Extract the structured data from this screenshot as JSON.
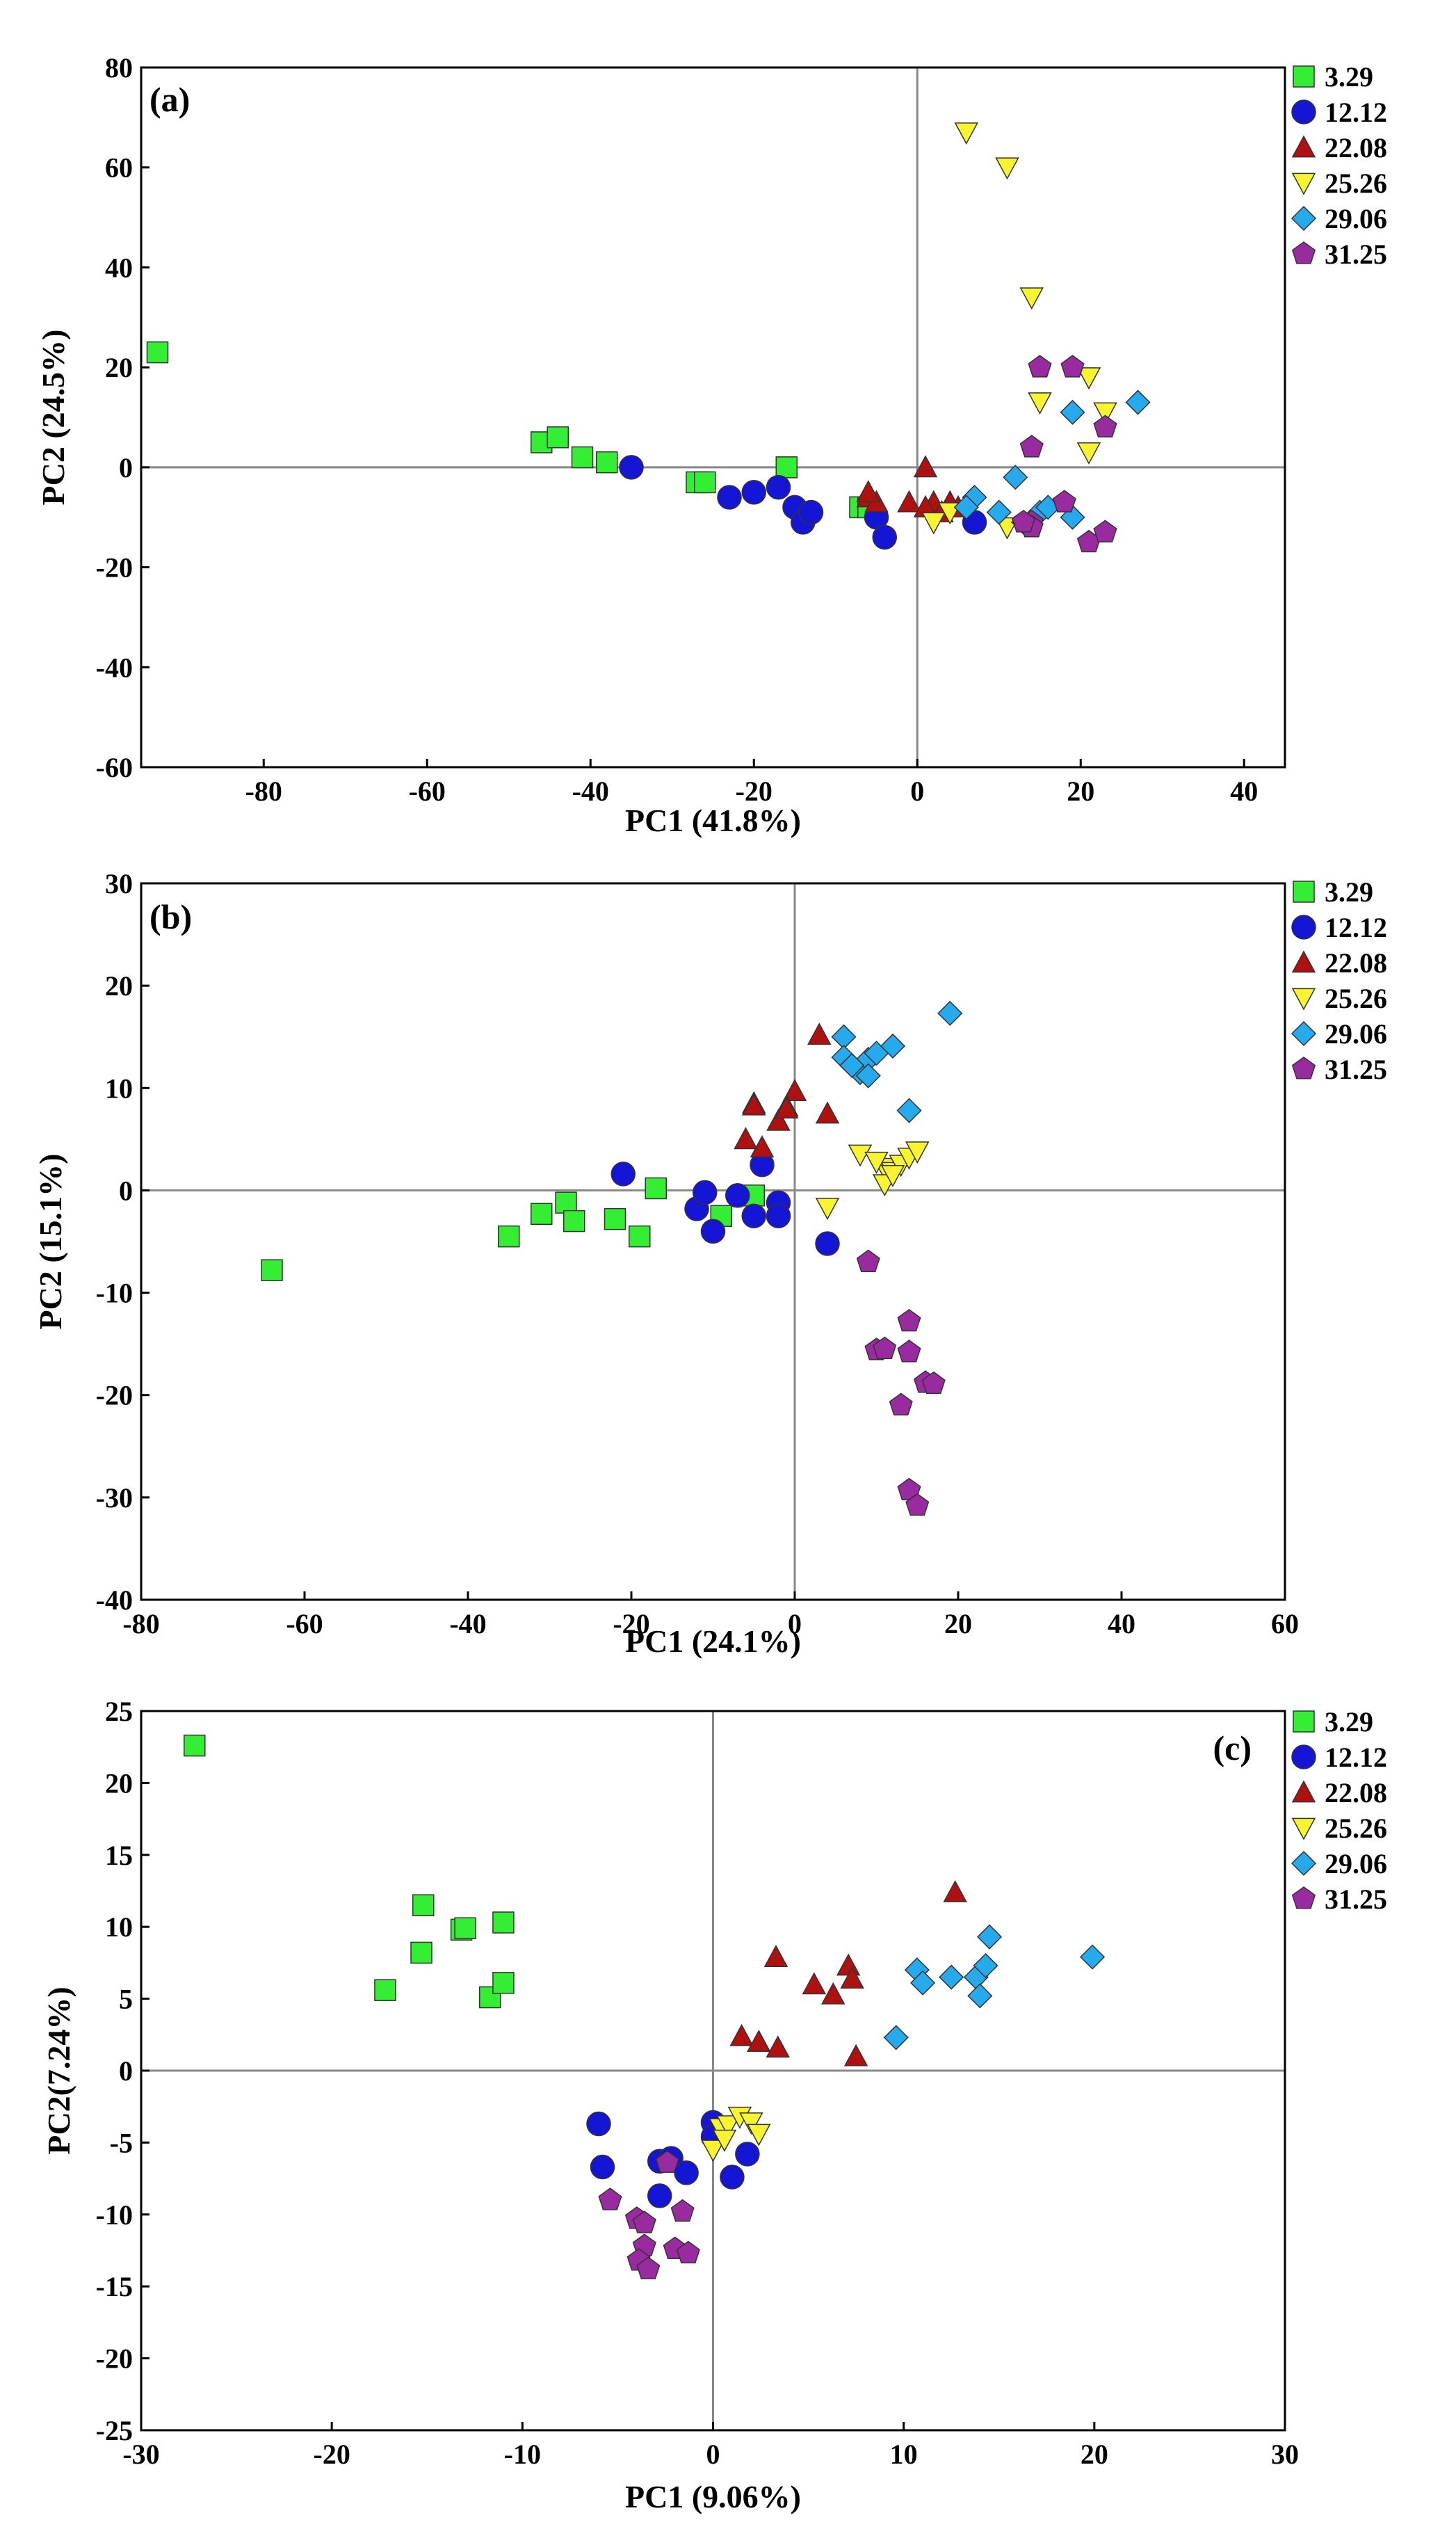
{
  "colors": {
    "s329": "#33ee33",
    "s1212": "#1515d5",
    "s2208": "#b01010",
    "s2526": "#f8f530",
    "s2906": "#25aaee",
    "s3125": "#9a2aa0"
  },
  "chart_data": [
    {
      "type": "scatter",
      "panel": "(a)",
      "xlabel": "PC1 (41.8%)",
      "ylabel": "PC2 (24.5%)",
      "xlim": [
        -95,
        45
      ],
      "ylim": [
        -60,
        80
      ],
      "xticks": [
        -80,
        -60,
        -40,
        -20,
        0,
        20,
        40
      ],
      "yticks": [
        -60,
        -40,
        -20,
        0,
        20,
        40,
        60,
        80
      ],
      "legend_position": "outside-top-right",
      "series": [
        {
          "name": "3.29",
          "marker": "square",
          "color": "#33ee33",
          "points": [
            [
              -93,
              23
            ],
            [
              -46,
              5
            ],
            [
              -44,
              6
            ],
            [
              -41,
              2
            ],
            [
              -38,
              1
            ],
            [
              -27,
              -3
            ],
            [
              -26,
              -3
            ],
            [
              -16,
              0
            ],
            [
              -7,
              -8
            ],
            [
              -6,
              -8
            ]
          ]
        },
        {
          "name": "12.12",
          "marker": "circle",
          "color": "#1515d5",
          "points": [
            [
              -35,
              0
            ],
            [
              -23,
              -6
            ],
            [
              -20,
              -5
            ],
            [
              -17,
              -4
            ],
            [
              -15,
              -8
            ],
            [
              -14,
              -11
            ],
            [
              -13,
              -9
            ],
            [
              -5,
              -10
            ],
            [
              -4,
              -14
            ],
            [
              7,
              -11
            ]
          ]
        },
        {
          "name": "22.08",
          "marker": "triangle-up",
          "color": "#b01010",
          "points": [
            [
              -6,
              -6
            ],
            [
              -5,
              -7
            ],
            [
              -1,
              -7
            ],
            [
              1,
              0
            ],
            [
              2,
              -7
            ],
            [
              4,
              -7
            ],
            [
              3,
              -9
            ],
            [
              1,
              -8
            ],
            [
              -6,
              -5
            ],
            [
              5,
              -8
            ]
          ]
        },
        {
          "name": "25.26",
          "marker": "triangle-down",
          "color": "#f8f530",
          "points": [
            [
              6,
              67
            ],
            [
              11,
              60
            ],
            [
              14,
              34
            ],
            [
              15,
              13
            ],
            [
              21,
              18
            ],
            [
              23,
              11
            ],
            [
              21,
              3
            ],
            [
              2,
              -11
            ],
            [
              11,
              -12
            ],
            [
              4,
              -9
            ]
          ]
        },
        {
          "name": "29.06",
          "marker": "diamond",
          "color": "#25aaee",
          "points": [
            [
              27,
              13
            ],
            [
              19,
              11
            ],
            [
              12,
              -2
            ],
            [
              7,
              -6
            ],
            [
              10,
              -9
            ],
            [
              15,
              -9
            ],
            [
              19,
              -10
            ],
            [
              13,
              -11
            ],
            [
              6,
              -8
            ],
            [
              16,
              -8
            ]
          ]
        },
        {
          "name": "31.25",
          "marker": "pentagon",
          "color": "#9a2aa0",
          "points": [
            [
              15,
              20
            ],
            [
              19,
              20
            ],
            [
              23,
              8
            ],
            [
              14,
              4
            ],
            [
              18,
              -7
            ],
            [
              14,
              -11
            ],
            [
              14,
              -12
            ],
            [
              21,
              -15
            ],
            [
              23,
              -13
            ],
            [
              13,
              -11
            ]
          ]
        }
      ]
    },
    {
      "type": "scatter",
      "panel": "(b)",
      "xlabel": "PC1 (24.1%)",
      "ylabel": "PC2 (15.1%)",
      "xlim": [
        -80,
        60
      ],
      "ylim": [
        -40,
        30
      ],
      "xticks": [
        -80,
        -60,
        -40,
        -20,
        0,
        20,
        40,
        60
      ],
      "yticks": [
        -40,
        -30,
        -20,
        -10,
        0,
        10,
        20,
        30
      ],
      "legend_position": "outside-top-right",
      "series": [
        {
          "name": "3.29",
          "marker": "square",
          "color": "#33ee33",
          "points": [
            [
              -64,
              -7.8
            ],
            [
              -35,
              -4.5
            ],
            [
              -31,
              -2.3
            ],
            [
              -28,
              -1.2
            ],
            [
              -27,
              -3
            ],
            [
              -22,
              -2.8
            ],
            [
              -19,
              -4.5
            ],
            [
              -17,
              0.2
            ],
            [
              -9,
              -2.5
            ],
            [
              -5,
              -0.5
            ]
          ]
        },
        {
          "name": "12.12",
          "marker": "circle",
          "color": "#1515d5",
          "points": [
            [
              -21,
              1.6
            ],
            [
              -12,
              -1.8
            ],
            [
              -11,
              -0.2
            ],
            [
              -10,
              -4
            ],
            [
              -7,
              -0.5
            ],
            [
              -5,
              -2.5
            ],
            [
              -4,
              2.5
            ],
            [
              -2,
              -1.2
            ],
            [
              -2,
              -2.5
            ],
            [
              4,
              -5.2
            ]
          ]
        },
        {
          "name": "22.08",
          "marker": "triangle-up",
          "color": "#b01010",
          "points": [
            [
              3,
              15.2
            ],
            [
              0,
              9.7
            ],
            [
              -1,
              8.2
            ],
            [
              -2,
              6.8
            ],
            [
              -5,
              8.5
            ],
            [
              -4,
              4.2
            ],
            [
              -6,
              5
            ],
            [
              4,
              7.5
            ],
            [
              -1,
              8
            ],
            [
              -5,
              8.3
            ]
          ]
        },
        {
          "name": "25.26",
          "marker": "triangle-down",
          "color": "#f8f530",
          "points": [
            [
              4,
              -1.7
            ],
            [
              8,
              3.5
            ],
            [
              11,
              2.2
            ],
            [
              12,
              1.8
            ],
            [
              13,
              2.5
            ],
            [
              14,
              3.2
            ],
            [
              11,
              0.6
            ],
            [
              12,
              1.5
            ],
            [
              15,
              3.8
            ],
            [
              10,
              2.8
            ]
          ]
        },
        {
          "name": "29.06",
          "marker": "diamond",
          "color": "#25aaee",
          "points": [
            [
              19,
              17.3
            ],
            [
              6,
              15
            ],
            [
              6,
              13
            ],
            [
              8,
              11.5
            ],
            [
              9,
              12.8
            ],
            [
              10,
              13.4
            ],
            [
              12,
              14.1
            ],
            [
              9,
              11.2
            ],
            [
              14,
              7.8
            ],
            [
              7,
              12.2
            ]
          ]
        },
        {
          "name": "31.25",
          "marker": "pentagon",
          "color": "#9a2aa0",
          "points": [
            [
              9,
              -7
            ],
            [
              14,
              -12.8
            ],
            [
              14,
              -15.8
            ],
            [
              10,
              -15.6
            ],
            [
              11,
              -15.5
            ],
            [
              13,
              -21
            ],
            [
              16,
              -18.8
            ],
            [
              17,
              -18.9
            ],
            [
              14,
              -29.3
            ],
            [
              15,
              -30.8
            ]
          ]
        }
      ]
    },
    {
      "type": "scatter",
      "panel": "(c)",
      "xlabel": "PC1 (9.06%)",
      "ylabel": "PC2(7.24%)",
      "xlim": [
        -30,
        30
      ],
      "ylim": [
        -25,
        25
      ],
      "xticks": [
        -30,
        -20,
        -10,
        0,
        10,
        20,
        30
      ],
      "yticks": [
        -25,
        -20,
        -15,
        -10,
        -5,
        0,
        5,
        10,
        15,
        20,
        25
      ],
      "legend_position": "outside-top-right",
      "series": [
        {
          "name": "3.29",
          "marker": "square",
          "color": "#33ee33",
          "points": [
            [
              -27.2,
              22.6
            ],
            [
              -17.2,
              5.6
            ],
            [
              -15.3,
              8.2
            ],
            [
              -15.2,
              11.5
            ],
            [
              -13.2,
              9.8
            ],
            [
              -13,
              9.9
            ],
            [
              -11.7,
              5.1
            ],
            [
              -11,
              6.1
            ],
            [
              -11,
              10.3
            ]
          ]
        },
        {
          "name": "12.12",
          "marker": "circle",
          "color": "#1515d5",
          "points": [
            [
              -6,
              -3.7
            ],
            [
              -5.8,
              -6.7
            ],
            [
              -2.8,
              -6.3
            ],
            [
              -2.8,
              -8.7
            ],
            [
              -2.2,
              -6.1
            ],
            [
              -1.4,
              -7.1
            ],
            [
              0,
              -3.6
            ],
            [
              0,
              -4.6
            ],
            [
              1,
              -7.4
            ],
            [
              1.8,
              -5.8
            ]
          ]
        },
        {
          "name": "22.08",
          "marker": "triangle-up",
          "color": "#b01010",
          "points": [
            [
              1.5,
              2.4
            ],
            [
              2.4,
              2
            ],
            [
              3.3,
              7.9
            ],
            [
              3.4,
              1.6
            ],
            [
              5.3,
              6
            ],
            [
              6.3,
              5.3
            ],
            [
              7.1,
              7.3
            ],
            [
              7.3,
              6.4
            ],
            [
              7.5,
              1
            ],
            [
              12.7,
              12.4
            ]
          ]
        },
        {
          "name": "25.26",
          "marker": "triangle-down",
          "color": "#f8f530",
          "points": [
            [
              0,
              -5.5
            ],
            [
              0.4,
              -4
            ],
            [
              0.8,
              -3.8
            ],
            [
              1.4,
              -3.2
            ],
            [
              2,
              -3.6
            ],
            [
              2.4,
              -4.4
            ],
            [
              0.6,
              -4.8
            ]
          ]
        },
        {
          "name": "29.06",
          "marker": "diamond",
          "color": "#25aaee",
          "points": [
            [
              9.6,
              2.3
            ],
            [
              10.7,
              7
            ],
            [
              11,
              6.1
            ],
            [
              12.5,
              6.5
            ],
            [
              13.8,
              6.5
            ],
            [
              14,
              5.2
            ],
            [
              14.3,
              7.3
            ],
            [
              14.5,
              9.3
            ],
            [
              19.9,
              7.9
            ]
          ]
        },
        {
          "name": "31.25",
          "marker": "pentagon",
          "color": "#9a2aa0",
          "points": [
            [
              -5.4,
              -9
            ],
            [
              -4,
              -10.3
            ],
            [
              -3.6,
              -10.6
            ],
            [
              -3.6,
              -12.2
            ],
            [
              -3.9,
              -13.2
            ],
            [
              -3.4,
              -13.8
            ],
            [
              -2.4,
              -6.4
            ],
            [
              -2,
              -12.4
            ],
            [
              -1.6,
              -9.8
            ],
            [
              -1.3,
              -12.7
            ]
          ]
        }
      ]
    }
  ]
}
